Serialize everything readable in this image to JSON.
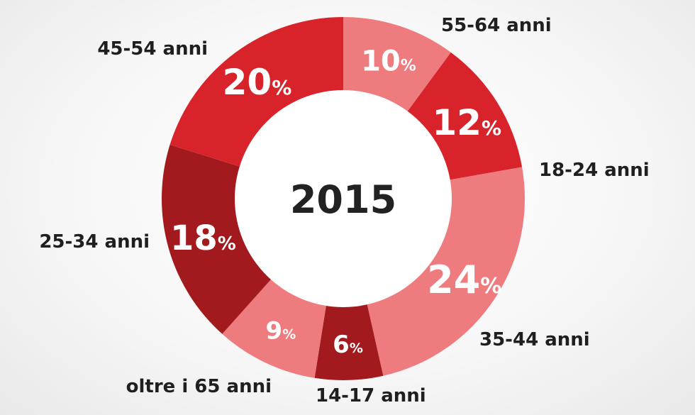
{
  "chart_data": {
    "type": "donut",
    "title": "2015",
    "unit": "%",
    "categories": [
      "55-64 anni",
      "18-24 anni",
      "35-44 anni",
      "14-17 anni",
      "oltre i 65 anni",
      "25-34 anni",
      "45-54 anni"
    ],
    "values": [
      10,
      12,
      24,
      6,
      9,
      18,
      20
    ],
    "colors": [
      "#ee7b7e",
      "#d8232b",
      "#ee7b7e",
      "#a31a1e",
      "#ee7b7e",
      "#a31a1e",
      "#d8232b"
    ],
    "value_labels": [
      "10",
      "12",
      "24",
      "6",
      "9",
      "18",
      "20"
    ],
    "percent_sign": "%",
    "start": "top",
    "direction": "clockwise"
  }
}
